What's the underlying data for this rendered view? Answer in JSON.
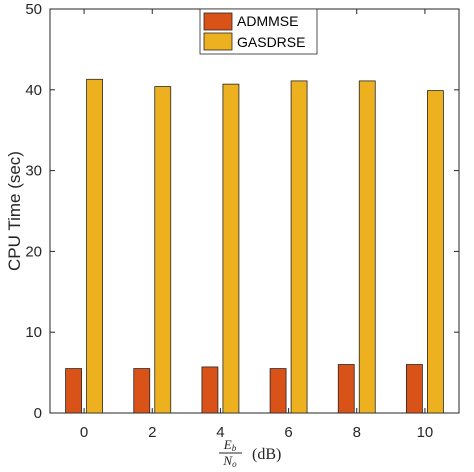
{
  "chart_data": {
    "type": "bar",
    "categories": [
      "0",
      "2",
      "4",
      "6",
      "8",
      "10"
    ],
    "series": [
      {
        "name": "ADMMSE",
        "values": [
          5.5,
          5.5,
          5.7,
          5.5,
          6.0,
          6.0
        ],
        "color": "#D95319"
      },
      {
        "name": "GASDRSE",
        "values": [
          41.3,
          40.4,
          40.7,
          41.1,
          41.1,
          39.9
        ],
        "color": "#EDB120"
      }
    ],
    "ylabel": "CPU Time (sec)",
    "xlabel": {
      "numerator": "E",
      "numerator_sub": "b",
      "denominator": "N",
      "denominator_sub": "o",
      "unit": "(dB)"
    },
    "ylim": [
      0,
      50
    ],
    "yticks": [
      0,
      10,
      20,
      30,
      40,
      50
    ],
    "grid": false,
    "legend_position": "top-center"
  }
}
